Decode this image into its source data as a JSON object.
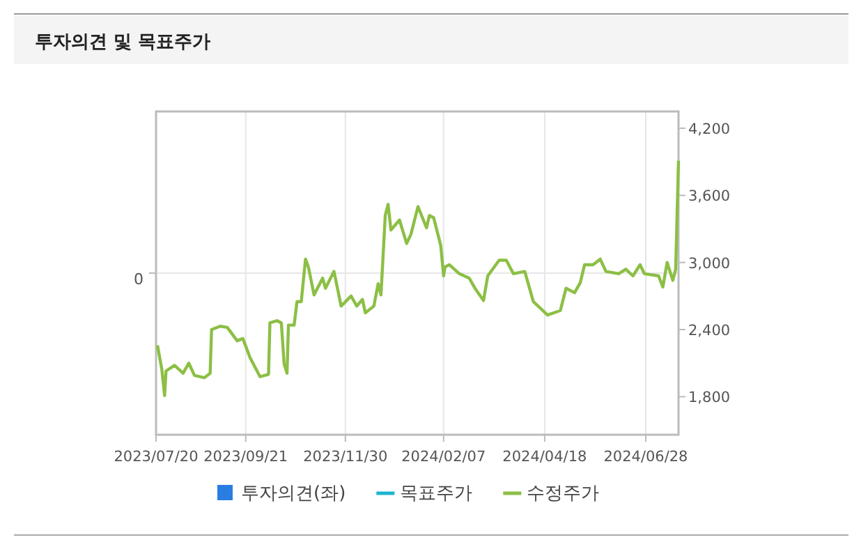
{
  "chart_data": {
    "type": "line",
    "title": "투자의견 및 목표주가",
    "legend": "bottom",
    "grid": true,
    "xlim": [
      "2023-07-20",
      "2024-07-21"
    ],
    "xticks": [
      {
        "value": "2023-07-20",
        "label": "2023/07/20"
      },
      {
        "value": "2023-09-21",
        "label": "2023/09/21"
      },
      {
        "value": "2023-11-30",
        "label": "2023/11/30"
      },
      {
        "value": "2024-02-07",
        "label": "2024/02/07"
      },
      {
        "value": "2024-04-18",
        "label": "2024/04/18"
      },
      {
        "value": "2024-06-28",
        "label": "2024/06/28"
      }
    ],
    "annotations": [
      "0"
    ],
    "y2lim": [
      1460,
      4350
    ],
    "y2ticks": [
      {
        "value": 1800,
        "label": "1,800"
      },
      {
        "value": 2400,
        "label": "2,400"
      },
      {
        "value": 3000,
        "label": "3,000"
      },
      {
        "value": 3600,
        "label": "3,600"
      },
      {
        "value": 4200,
        "label": "4,200"
      }
    ],
    "series": [
      {
        "name": "투자의견(좌)",
        "type": "bar",
        "color": "#2a7de1"
      },
      {
        "name": "목표주가",
        "type": "line",
        "color": "#1fb5d0"
      },
      {
        "name": "수정주가",
        "axis": "y2",
        "color": "#8cbf45",
        "x": [
          "2023-07-21",
          "2023-07-24",
          "2023-07-26",
          "2023-07-27",
          "2023-08-02",
          "2023-08-08",
          "2023-08-12",
          "2023-08-16",
          "2023-08-23",
          "2023-08-27",
          "2023-08-28",
          "2023-09-03",
          "2023-09-08",
          "2023-09-15",
          "2023-09-19",
          "2023-09-24",
          "2023-10-01",
          "2023-10-07",
          "2023-10-08",
          "2023-10-13",
          "2023-10-16",
          "2023-10-18",
          "2023-10-20",
          "2023-10-21",
          "2023-10-25",
          "2023-10-27",
          "2023-10-30",
          "2023-11-02",
          "2023-11-04",
          "2023-11-08",
          "2023-11-14",
          "2023-11-16",
          "2023-11-22",
          "2023-11-27",
          "2023-12-04",
          "2023-12-08",
          "2023-12-12",
          "2023-12-14",
          "2023-12-20",
          "2023-12-23",
          "2023-12-25",
          "2023-12-28",
          "2023-12-30",
          "2024-01-01",
          "2024-01-07",
          "2024-01-12",
          "2024-01-15",
          "2024-01-20",
          "2024-01-26",
          "2024-01-28",
          "2024-01-31",
          "2024-02-05",
          "2024-02-07",
          "2024-02-08",
          "2024-02-11",
          "2024-02-18",
          "2024-02-25",
          "2024-02-29",
          "2024-03-06",
          "2024-03-09",
          "2024-03-17",
          "2024-03-22",
          "2024-03-27",
          "2024-04-04",
          "2024-04-10",
          "2024-04-20",
          "2024-04-29",
          "2024-05-03",
          "2024-05-09",
          "2024-05-13",
          "2024-05-16",
          "2024-05-22",
          "2024-05-27",
          "2024-05-31",
          "2024-06-09",
          "2024-06-14",
          "2024-06-19",
          "2024-06-24",
          "2024-06-27",
          "2024-07-07",
          "2024-07-10",
          "2024-07-13",
          "2024-07-17",
          "2024-07-19",
          "2024-07-21"
        ],
        "values": [
          2260,
          2050,
          1810,
          2030,
          2080,
          2010,
          2100,
          1990,
          1970,
          2010,
          2400,
          2430,
          2420,
          2300,
          2320,
          2150,
          1980,
          2000,
          2460,
          2480,
          2460,
          2090,
          2010,
          2440,
          2440,
          2650,
          2650,
          3030,
          2960,
          2710,
          2860,
          2770,
          2920,
          2610,
          2700,
          2610,
          2670,
          2550,
          2610,
          2810,
          2710,
          3420,
          3520,
          3290,
          3380,
          3170,
          3250,
          3500,
          3310,
          3420,
          3400,
          3150,
          2880,
          2960,
          2980,
          2900,
          2860,
          2770,
          2660,
          2880,
          3020,
          3020,
          2900,
          2920,
          2650,
          2530,
          2570,
          2770,
          2730,
          2820,
          2980,
          2980,
          3030,
          2920,
          2900,
          2940,
          2880,
          2980,
          2900,
          2880,
          2780,
          3000,
          2840,
          2940,
          3910
        ]
      }
    ]
  }
}
